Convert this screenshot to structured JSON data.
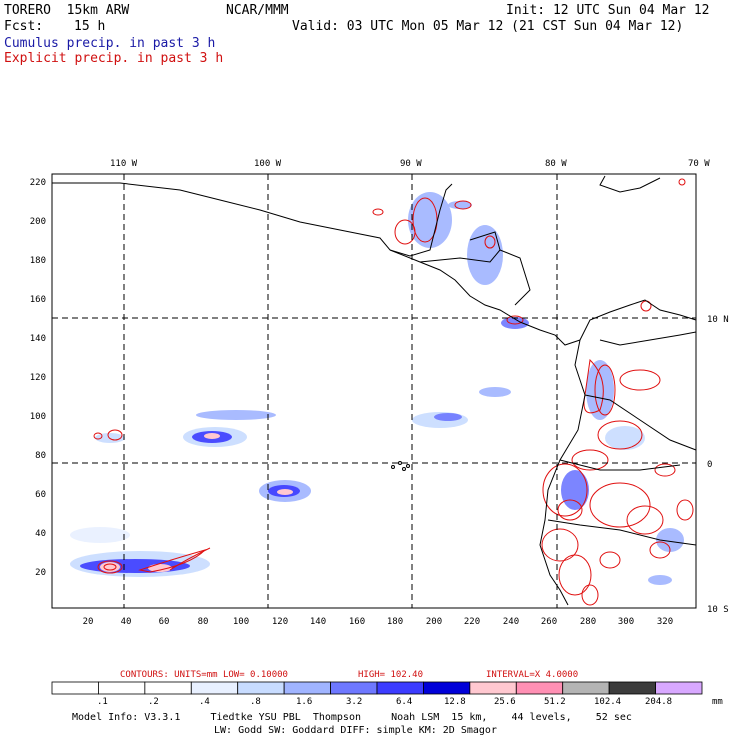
{
  "header": {
    "model": "TORERO  15km ARW",
    "org": "NCAR/MMM",
    "init": "Init: 12 UTC Sun 04 Mar 12",
    "fcst_label": "Fcst:",
    "fcst_value": "15 h",
    "valid": "Valid: 03 UTC Mon 05 Mar 12 (21 CST Sun 04 Mar 12)",
    "legend_cumulus": "Cumulus precip. in past 3 h",
    "legend_explicit": "Explicit precip. in past 3 h"
  },
  "map": {
    "top_lon_labels": [
      "110 W",
      "100 W",
      "90 W",
      "80 W",
      "70 W"
    ],
    "right_lat_labels": [
      "10 N",
      "0",
      "10 S"
    ],
    "left_y_ticks": [
      "220",
      "200",
      "180",
      "160",
      "140",
      "120",
      "100",
      "80",
      "60",
      "40",
      "20"
    ],
    "bottom_x_ticks": [
      "20",
      "40",
      "60",
      "80",
      "100",
      "120",
      "140",
      "160",
      "180",
      "200",
      "220",
      "240",
      "260",
      "280",
      "300",
      "320"
    ]
  },
  "contours_line": {
    "units": "CONTOURS:  UNITS=mm  LOW= 0.10000",
    "high": "HIGH=  102.40",
    "interval": "INTERVAL=X  4.0000"
  },
  "colorbar": {
    "labels": [
      ".1",
      ".2",
      ".4",
      ".8",
      "1.6",
      "3.2",
      "6.4",
      "12.8",
      "25.6",
      "51.2",
      "102.4",
      "204.8"
    ],
    "unit": "mm",
    "colors": [
      "#ffffff",
      "#ffffff",
      "#ffffff",
      "#e8f0ff",
      "#c8dcff",
      "#a0b4ff",
      "#6e78ff",
      "#3c3cff",
      "#0000d8",
      "#ffc8d0",
      "#ff90b4",
      "#b4b4b4",
      "#3c3c3c",
      "#d8a8ff"
    ]
  },
  "model_info": {
    "line1": "Model Info: V3.3.1     Tiedtke YSU PBL  Thompson     Noah LSM  15 km,    44 levels,    52 sec",
    "line2": "LW: Godd SW: Goddard DIFF: simple KM: 2D Smagor"
  }
}
